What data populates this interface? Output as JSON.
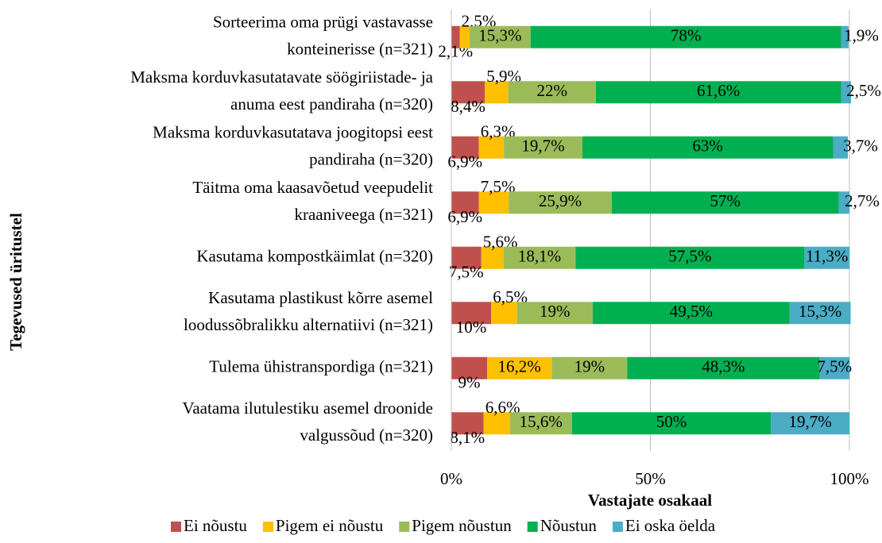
{
  "chart_data": {
    "type": "stacked_bar_horizontal",
    "y_axis_label": "Tegevused üritustel",
    "x_axis_label": "Vastajate osakaal",
    "categories": [
      [
        "Sorteerima oma prügi vastavasse",
        "konteinerisse (n=321)"
      ],
      [
        "Maksma korduvkasutatavate söögiriistade- ja",
        "anuma eest pandiraha (n=320)"
      ],
      [
        "Maksma korduvkasutatava joogitopsi eest",
        "pandiraha (n=320)"
      ],
      [
        "Täitma oma kaasavõetud veepudelit",
        "kraaniveega (n=321)"
      ],
      [
        "Kasutama kompostkäimlat (n=320)"
      ],
      [
        "Kasutama plastikust kõrre asemel",
        "loodussõbralikku alternatiivi (n=321)"
      ],
      [
        "Tulema ühistranspordiga (n=321)"
      ],
      [
        "Vaatama ilutulestiku asemel droonide",
        "valgussõud (n=320)"
      ]
    ],
    "series": [
      {
        "name": "Ei nõustu",
        "color": "#c0504d",
        "values": [
          2.1,
          8.4,
          6.9,
          6.9,
          7.5,
          10,
          9,
          8.1
        ],
        "value_labels": [
          "2,1%",
          "8,4%",
          "6,9%",
          "6,9%",
          "7,5%",
          "10%",
          "9%",
          "8,1%"
        ]
      },
      {
        "name": "Pigem ei nõustu",
        "color": "#ffc000",
        "values": [
          2.5,
          5.9,
          6.3,
          7.5,
          5.6,
          6.5,
          16.2,
          6.6
        ],
        "value_labels": [
          "2,5%",
          "5,9%",
          "6,3%",
          "7,5%",
          "5,6%",
          "6,5%",
          "16,2%",
          "6,6%"
        ]
      },
      {
        "name": "Pigem nõustun",
        "color": "#9bbb59",
        "values": [
          15.3,
          22,
          19.7,
          25.9,
          18.1,
          19,
          19,
          15.6
        ],
        "value_labels": [
          "15,3%",
          "22%",
          "19,7%",
          "25,9%",
          "18,1%",
          "19%",
          "19%",
          "15,6%"
        ]
      },
      {
        "name": "Nõustun",
        "color": "#00b050",
        "values": [
          78,
          61.6,
          63,
          57,
          57.5,
          49.5,
          48.3,
          50
        ],
        "value_labels": [
          "78%",
          "61,6%",
          "63%",
          "57%",
          "57,5%",
          "49,5%",
          "48,3%",
          "50%"
        ]
      },
      {
        "name": "Ei oska öelda",
        "color": "#4bacc6",
        "values": [
          1.9,
          2.5,
          3.7,
          2.7,
          11.3,
          15.3,
          7.5,
          19.7
        ],
        "value_labels": [
          "1,9%",
          "2,5%",
          "3,7%",
          "2,7%",
          "11,3%",
          "15,3%",
          "7,5%",
          "19,7%"
        ]
      }
    ],
    "xlim": [
      0,
      100
    ],
    "xticks": [
      {
        "value": 0,
        "label": "0%"
      },
      {
        "value": 50,
        "label": "50%"
      },
      {
        "value": 100,
        "label": "100%"
      }
    ],
    "grid": true,
    "legend": "bottom"
  }
}
